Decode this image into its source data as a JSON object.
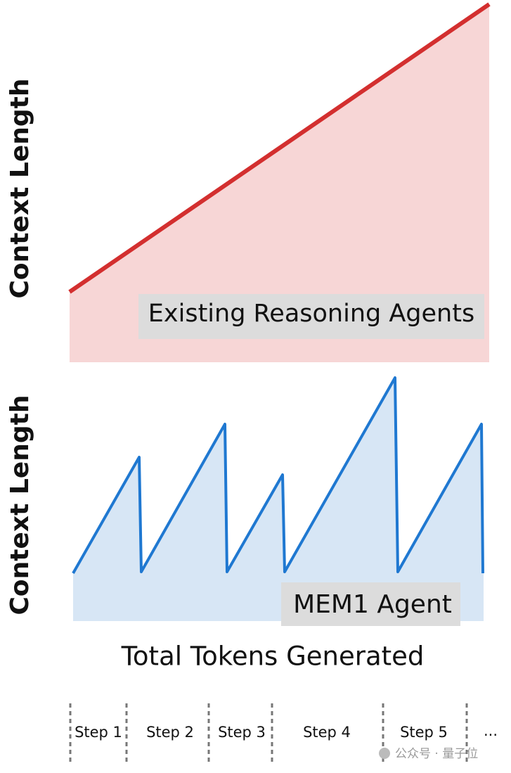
{
  "panels": [
    {
      "y_axis": "Context Length",
      "label": "Existing Reasoning Agents"
    },
    {
      "y_axis": "Context Length",
      "label": "MEM1 Agent"
    }
  ],
  "x_axis": "Total Tokens Generated",
  "steps": [
    "Step 1",
    "Step 2",
    "Step 3",
    "Step 4",
    "Step 5",
    "..."
  ],
  "watermark": "公众号 · 量子位"
}
